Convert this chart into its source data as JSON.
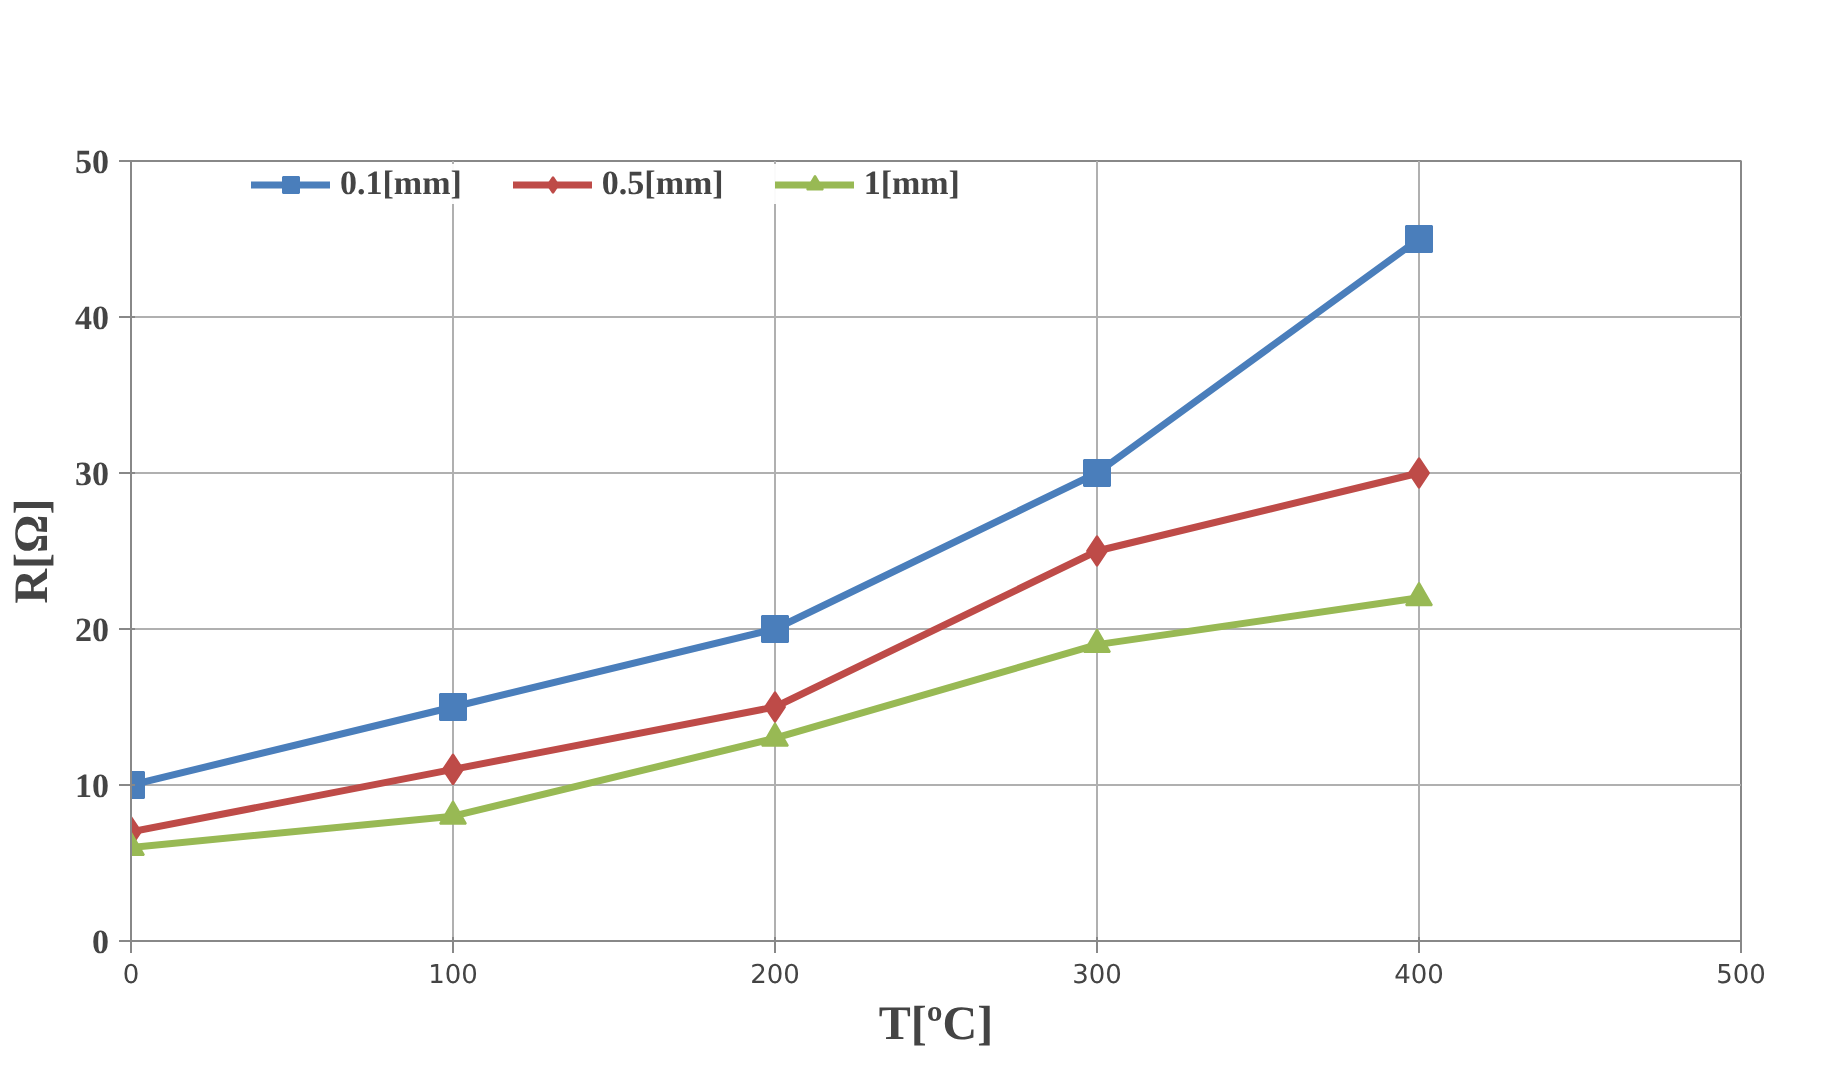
{
  "chart_data": {
    "type": "line",
    "xlabel": "T[ºC]",
    "ylabel": "R[Ω]",
    "x": [
      0,
      100,
      200,
      300,
      400
    ],
    "series": [
      {
        "name": "0.1[mm]",
        "color": "#4a7ebb",
        "marker": "square",
        "values": [
          10,
          15,
          20,
          30,
          45
        ]
      },
      {
        "name": "0.5[mm]",
        "color": "#be4b48",
        "marker": "diamond",
        "values": [
          7,
          11,
          15,
          25,
          30
        ]
      },
      {
        "name": "1[mm]",
        "color": "#98b954",
        "marker": "triangle",
        "values": [
          6,
          8,
          13,
          19,
          22
        ]
      }
    ],
    "xlim": [
      0,
      500
    ],
    "xticks": [
      0,
      100,
      200,
      300,
      400,
      500
    ],
    "ylim": [
      0,
      50
    ],
    "yticks": [
      0,
      10,
      20,
      30,
      40,
      50
    ],
    "grid": true,
    "legend": "top",
    "line_style": "solid"
  }
}
